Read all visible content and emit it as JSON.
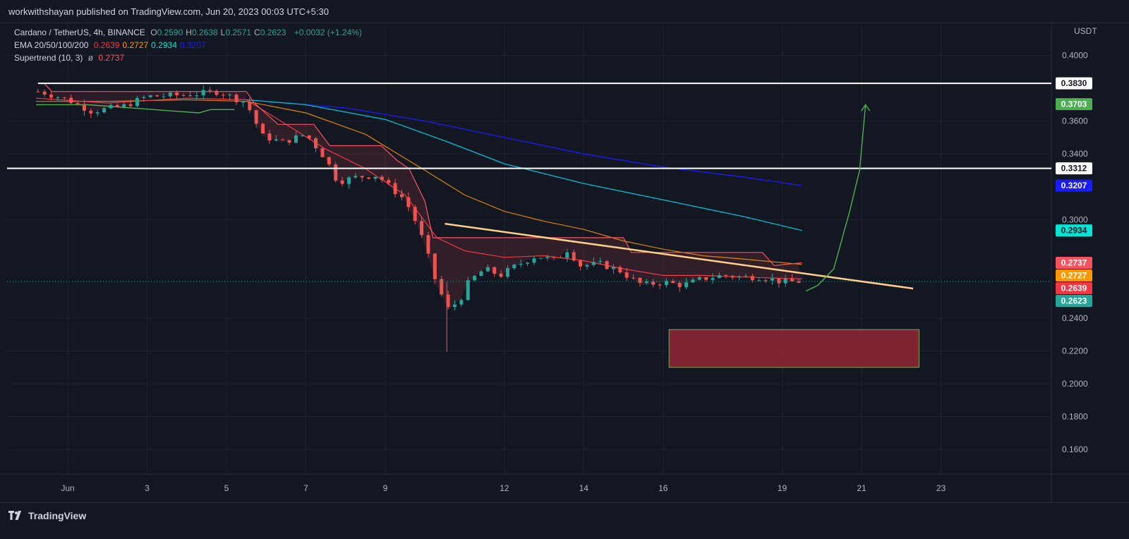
{
  "header": {
    "publisher": "workwithshayan published on TradingView.com, Jun 20, 2023 00:03 UTC+5:30"
  },
  "legend": {
    "symbol": "Cardano / TetherUS, 4h, BINANCE",
    "ohlc": [
      {
        "k": "O",
        "v": "0.2590"
      },
      {
        "k": "H",
        "v": "0.2638"
      },
      {
        "k": "L",
        "v": "0.2571"
      },
      {
        "k": "C",
        "v": "0.2623"
      }
    ],
    "change": "+0.0032 (+1.24%)",
    "ema_label": "EMA 20/50/100/200",
    "ema_values": [
      {
        "v": "0.2639",
        "color": "#f23645"
      },
      {
        "v": "0.2727",
        "color": "#ff9800"
      },
      {
        "v": "0.2934",
        "color": "#00e5d4"
      },
      {
        "v": "0.3207",
        "color": "#1a1aff"
      }
    ],
    "supertrend_label": "Supertrend (10, 3)",
    "supertrend_glyph": "ø",
    "supertrend_value": "0.2737"
  },
  "footer": {
    "brand": "TradingView"
  },
  "colors": {
    "bg": "#131722",
    "grid": "#1e222d",
    "up": "#26a69a",
    "down": "#ef5350",
    "ema20": "#f23645",
    "ema50": "#ff9800",
    "ema100": "#00bcd4",
    "ema200": "#1a1aff",
    "supertrend": "#f7525f",
    "trendline": "#ffd08a",
    "projection": "#4caf50",
    "zone_fill": "#8b2635",
    "zone_border": "#7da35a"
  },
  "chart_data": {
    "type": "candlestick",
    "unit": "USDT",
    "ylim": [
      0.145,
      0.42
    ],
    "price_ticks": [
      "0.4000",
      "0.3600",
      "0.3400",
      "0.3000",
      "0.2400",
      "0.2200",
      "0.2000",
      "0.1800",
      "0.1600"
    ],
    "date_ticks": [
      {
        "label": "Jun",
        "day": 1
      },
      {
        "label": "3",
        "day": 3
      },
      {
        "label": "5",
        "day": 5
      },
      {
        "label": "7",
        "day": 7
      },
      {
        "label": "9",
        "day": 9
      },
      {
        "label": "12",
        "day": 12
      },
      {
        "label": "14",
        "day": 14
      },
      {
        "label": "16",
        "day": 16
      },
      {
        "label": "19",
        "day": 19
      },
      {
        "label": "21",
        "day": 21
      },
      {
        "label": "23",
        "day": 23
      }
    ],
    "horizontal_levels": [
      {
        "price": 0.383,
        "label": "0.3830"
      },
      {
        "price": 0.3312,
        "label": "0.3312"
      }
    ],
    "price_labels": [
      {
        "price": 0.383,
        "label": "0.3830",
        "bg": "#ffffff",
        "fg": "#131722"
      },
      {
        "price": 0.3703,
        "label": "0.3703",
        "bg": "#4caf50",
        "fg": "#ffffff"
      },
      {
        "price": 0.3312,
        "label": "0.3312",
        "bg": "#ffffff",
        "fg": "#131722"
      },
      {
        "price": 0.3207,
        "label": "0.3207",
        "bg": "#1a1aff",
        "fg": "#ffffff"
      },
      {
        "price": 0.2934,
        "label": "0.2934",
        "bg": "#00e5d4",
        "fg": "#131722"
      },
      {
        "price": 0.2737,
        "label": "0.2737",
        "bg": "#f7525f",
        "fg": "#ffffff"
      },
      {
        "price": 0.2727,
        "label": "0.2727",
        "bg": "#ff9800",
        "fg": "#ffffff"
      },
      {
        "price": 0.2639,
        "label": "0.2639",
        "bg": "#f23645",
        "fg": "#ffffff"
      },
      {
        "price": 0.2623,
        "label": "0.2623",
        "bg": "#26a69a",
        "fg": "#ffffff"
      }
    ],
    "current_price": 0.2623,
    "close_path": [
      [
        0.3,
        0.378
      ],
      [
        1.0,
        0.373
      ],
      [
        1.6,
        0.366
      ],
      [
        2.4,
        0.369
      ],
      [
        3.0,
        0.375
      ],
      [
        4.0,
        0.376
      ],
      [
        4.8,
        0.378
      ],
      [
        5.5,
        0.371
      ],
      [
        5.9,
        0.351
      ],
      [
        6.4,
        0.347
      ],
      [
        7.0,
        0.352
      ],
      [
        7.5,
        0.337
      ],
      [
        7.8,
        0.323
      ],
      [
        8.3,
        0.326
      ],
      [
        8.8,
        0.327
      ],
      [
        9.2,
        0.318
      ],
      [
        9.5,
        0.312
      ],
      [
        9.8,
        0.297
      ],
      [
        10.0,
        0.284
      ],
      [
        10.3,
        0.26
      ],
      [
        10.6,
        0.245
      ],
      [
        10.9,
        0.252
      ],
      [
        11.1,
        0.262
      ],
      [
        11.5,
        0.27
      ],
      [
        11.9,
        0.266
      ],
      [
        12.3,
        0.272
      ],
      [
        12.8,
        0.278
      ],
      [
        13.3,
        0.275
      ],
      [
        13.6,
        0.282
      ],
      [
        13.9,
        0.272
      ],
      [
        14.4,
        0.273
      ],
      [
        14.9,
        0.269
      ],
      [
        15.2,
        0.264
      ],
      [
        15.5,
        0.26
      ],
      [
        16.0,
        0.262
      ],
      [
        16.5,
        0.26
      ],
      [
        17.0,
        0.264
      ],
      [
        17.5,
        0.266
      ],
      [
        18.0,
        0.265
      ],
      [
        18.5,
        0.265
      ],
      [
        19.0,
        0.262
      ],
      [
        19.5,
        0.2623
      ]
    ],
    "ema20": [
      [
        0.2,
        0.374
      ],
      [
        2,
        0.371
      ],
      [
        4,
        0.374
      ],
      [
        5.5,
        0.373
      ],
      [
        6.5,
        0.358
      ],
      [
        7.5,
        0.343
      ],
      [
        8.5,
        0.331
      ],
      [
        9.5,
        0.315
      ],
      [
        10.3,
        0.289
      ],
      [
        11,
        0.281
      ],
      [
        12,
        0.277
      ],
      [
        13,
        0.278
      ],
      [
        14,
        0.275
      ],
      [
        15,
        0.27
      ],
      [
        16,
        0.266
      ],
      [
        17,
        0.266
      ],
      [
        18,
        0.265
      ],
      [
        19.5,
        0.2639
      ]
    ],
    "ema50": [
      [
        0.2,
        0.372
      ],
      [
        2,
        0.372
      ],
      [
        4,
        0.373
      ],
      [
        5.5,
        0.372
      ],
      [
        7,
        0.365
      ],
      [
        8.5,
        0.352
      ],
      [
        10,
        0.33
      ],
      [
        11,
        0.315
      ],
      [
        12,
        0.305
      ],
      [
        13,
        0.299
      ],
      [
        14,
        0.294
      ],
      [
        15,
        0.287
      ],
      [
        16,
        0.282
      ],
      [
        17,
        0.278
      ],
      [
        18,
        0.276
      ],
      [
        19.5,
        0.2727
      ]
    ],
    "ema100": [
      [
        5.5,
        0.373
      ],
      [
        7,
        0.37
      ],
      [
        9,
        0.361
      ],
      [
        10.5,
        0.348
      ],
      [
        12,
        0.334
      ],
      [
        14,
        0.322
      ],
      [
        16,
        0.312
      ],
      [
        18,
        0.302
      ],
      [
        19.5,
        0.2934
      ]
    ],
    "ema200": [
      [
        5.5,
        0.373
      ],
      [
        8,
        0.368
      ],
      [
        10,
        0.36
      ],
      [
        12,
        0.35
      ],
      [
        14,
        0.34
      ],
      [
        16,
        0.332
      ],
      [
        18,
        0.326
      ],
      [
        19.5,
        0.3207
      ]
    ],
    "supertrend": [
      [
        0.4,
        0.383
      ],
      [
        0.6,
        0.378
      ],
      [
        5.5,
        0.378
      ],
      [
        5.7,
        0.371
      ],
      [
        6.3,
        0.358
      ],
      [
        7.2,
        0.358
      ],
      [
        7.6,
        0.345
      ],
      [
        8.9,
        0.345
      ],
      [
        9.3,
        0.336
      ],
      [
        9.6,
        0.331
      ],
      [
        10.0,
        0.311
      ],
      [
        10.2,
        0.289
      ],
      [
        13.5,
        0.289
      ],
      [
        14.5,
        0.289
      ],
      [
        15.0,
        0.289
      ],
      [
        15.2,
        0.28
      ],
      [
        18.5,
        0.28
      ],
      [
        18.8,
        0.272
      ],
      [
        19.5,
        0.2737
      ]
    ],
    "supertrend_up": [
      [
        0.2,
        0.37
      ],
      [
        1.5,
        0.37
      ],
      [
        4.3,
        0.365
      ],
      [
        4.6,
        0.367
      ],
      [
        5.2,
        0.367
      ]
    ],
    "trendline": [
      [
        10.5,
        0.2975
      ],
      [
        22.3,
        0.258
      ]
    ],
    "projection_arrow": [
      [
        19.6,
        0.2565
      ],
      [
        19.9,
        0.26
      ],
      [
        20.3,
        0.27
      ],
      [
        20.7,
        0.305
      ],
      [
        20.95,
        0.33
      ],
      [
        21.1,
        0.37
      ]
    ],
    "demand_zone": {
      "day_start": 16.15,
      "day_end": 22.45,
      "price_low": 0.21,
      "price_high": 0.233
    }
  }
}
